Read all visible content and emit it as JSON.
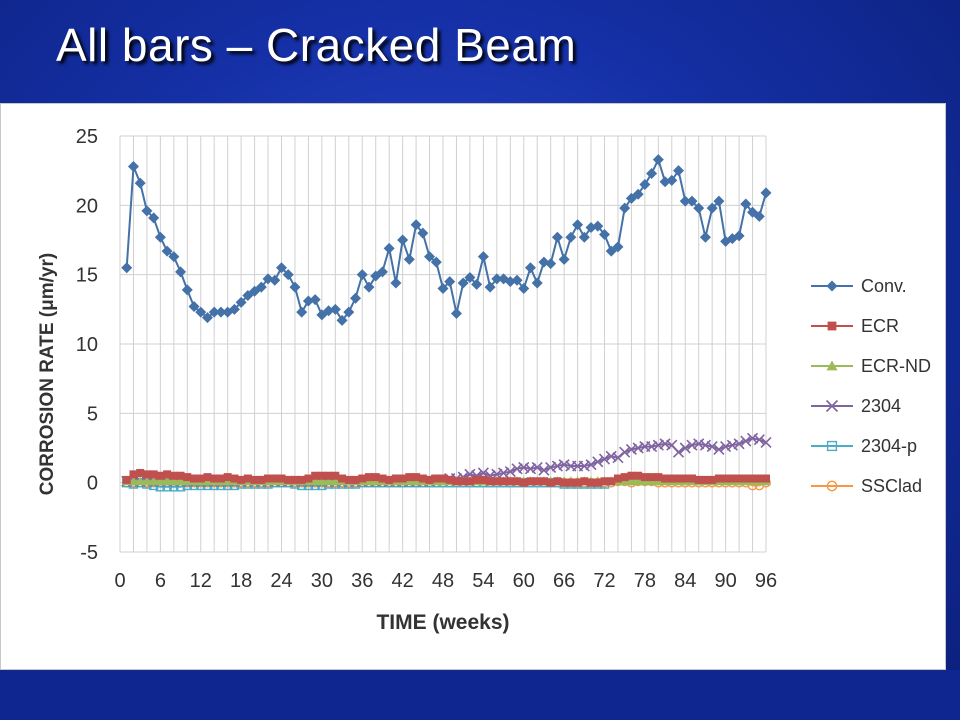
{
  "slide": {
    "title": "All bars – Cracked Beam"
  },
  "colors": {
    "background": "#1530a6",
    "title_text": "#ffffff",
    "grid": "#d0d0d0",
    "axis_text": "#333333"
  },
  "chart_data": {
    "type": "line",
    "title": "",
    "xlabel": "TIME (weeks)",
    "ylabel": "CORROSION RATE (μm/yr)",
    "xlim": [
      0,
      96
    ],
    "ylim": [
      -5,
      25
    ],
    "xticks": [
      0,
      6,
      12,
      18,
      24,
      30,
      36,
      42,
      48,
      54,
      60,
      66,
      72,
      78,
      84,
      90,
      96
    ],
    "yticks": [
      -5,
      0,
      5,
      10,
      15,
      20,
      25
    ],
    "grid": true,
    "legend_position": "right",
    "series": [
      {
        "name": "Conv.",
        "color": "#4472a8",
        "marker": "diamond",
        "x": [
          1,
          2,
          3,
          4,
          5,
          6,
          7,
          8,
          9,
          10,
          11,
          12,
          13,
          14,
          15,
          16,
          17,
          18,
          19,
          20,
          21,
          22,
          23,
          24,
          25,
          26,
          27,
          28,
          29,
          30,
          31,
          32,
          33,
          34,
          35,
          36,
          37,
          38,
          39,
          40,
          41,
          42,
          43,
          44,
          45,
          46,
          47,
          48,
          49,
          50,
          51,
          52,
          53,
          54,
          55,
          56,
          57,
          58,
          59,
          60,
          61,
          62,
          63,
          64,
          65,
          66,
          67,
          68,
          69,
          70,
          71,
          72,
          73,
          74,
          75,
          76,
          77,
          78,
          79,
          80,
          81,
          82,
          83,
          84,
          85,
          86,
          87,
          88,
          89,
          90,
          91,
          92,
          93,
          94,
          95,
          96
        ],
        "y": [
          15.5,
          22.8,
          21.6,
          19.6,
          19.1,
          17.7,
          16.7,
          16.3,
          15.2,
          13.9,
          12.7,
          12.3,
          11.9,
          12.3,
          12.3,
          12.3,
          12.5,
          13.0,
          13.5,
          13.8,
          14.1,
          14.7,
          14.6,
          15.5,
          15.0,
          14.1,
          12.3,
          13.1,
          13.2,
          12.1,
          12.4,
          12.5,
          11.7,
          12.3,
          13.3,
          15.0,
          14.1,
          14.9,
          15.2,
          16.9,
          14.4,
          17.5,
          16.1,
          18.6,
          18.0,
          16.3,
          15.9,
          14.0,
          14.5,
          12.2,
          14.4,
          14.8,
          14.3,
          16.3,
          14.1,
          14.7,
          14.7,
          14.5,
          14.6,
          14.0,
          15.5,
          14.4,
          15.9,
          15.8,
          17.7,
          16.1,
          17.7,
          18.6,
          17.7,
          18.4,
          18.5,
          17.9,
          16.7,
          17.0,
          19.8,
          20.5,
          20.8,
          21.5,
          22.3,
          23.3,
          21.7,
          21.8,
          22.5,
          20.3,
          20.3,
          19.8,
          17.7,
          19.8,
          20.3,
          17.4,
          17.6,
          17.8,
          20.1,
          19.5,
          19.2,
          20.9
        ]
      },
      {
        "name": "ECR",
        "color": "#c0504d",
        "marker": "square",
        "x": [
          1,
          2,
          3,
          4,
          5,
          6,
          7,
          8,
          9,
          10,
          11,
          12,
          13,
          14,
          15,
          16,
          17,
          18,
          19,
          20,
          21,
          22,
          23,
          24,
          25,
          26,
          27,
          28,
          29,
          30,
          31,
          32,
          33,
          34,
          35,
          36,
          37,
          38,
          39,
          40,
          41,
          42,
          43,
          44,
          45,
          46,
          47,
          48,
          49,
          50,
          51,
          52,
          53,
          54,
          55,
          56,
          57,
          58,
          59,
          60,
          61,
          62,
          63,
          64,
          65,
          66,
          67,
          68,
          69,
          70,
          71,
          72,
          73,
          74,
          75,
          76,
          77,
          78,
          79,
          80,
          81,
          82,
          83,
          84,
          85,
          86,
          87,
          88,
          89,
          90,
          91,
          92,
          93,
          94,
          95,
          96
        ],
        "y": [
          0.2,
          0.6,
          0.7,
          0.6,
          0.6,
          0.5,
          0.6,
          0.5,
          0.5,
          0.4,
          0.3,
          0.3,
          0.4,
          0.3,
          0.3,
          0.4,
          0.3,
          0.2,
          0.3,
          0.2,
          0.2,
          0.3,
          0.3,
          0.3,
          0.2,
          0.2,
          0.2,
          0.3,
          0.5,
          0.5,
          0.5,
          0.5,
          0.3,
          0.2,
          0.2,
          0.3,
          0.4,
          0.4,
          0.3,
          0.2,
          0.3,
          0.3,
          0.4,
          0.4,
          0.3,
          0.2,
          0.3,
          0.3,
          0.2,
          0.1,
          0.1,
          0.1,
          0.2,
          0.2,
          0.1,
          0.1,
          0.1,
          0.1,
          0.1,
          0.0,
          0.1,
          0.1,
          0.1,
          0.0,
          0.1,
          0.0,
          0.0,
          0.0,
          0.1,
          0.0,
          0.0,
          0.1,
          0.1,
          0.3,
          0.4,
          0.5,
          0.5,
          0.4,
          0.4,
          0.4,
          0.3,
          0.3,
          0.3,
          0.3,
          0.3,
          0.2,
          0.2,
          0.2,
          0.3,
          0.3,
          0.3,
          0.3,
          0.3,
          0.3,
          0.3,
          0.3
        ]
      },
      {
        "name": "ECR-ND",
        "color": "#9bbb59",
        "marker": "triangle",
        "x": [
          1,
          2,
          3,
          4,
          5,
          6,
          7,
          8,
          9,
          10,
          11,
          12,
          13,
          14,
          15,
          16,
          17,
          18,
          19,
          20,
          21,
          22,
          23,
          24,
          25,
          26,
          27,
          28,
          29,
          30,
          31,
          32,
          33,
          34,
          35,
          36,
          37,
          38,
          39,
          40,
          41,
          42,
          43,
          44,
          45,
          46,
          47,
          48,
          49,
          50,
          51,
          52,
          53,
          54,
          55,
          56,
          57,
          58,
          59,
          60,
          61,
          62,
          63,
          64,
          65,
          66,
          67,
          68,
          69,
          70,
          71,
          72,
          73,
          74,
          75,
          76,
          77,
          78,
          79,
          80,
          81,
          82,
          83,
          84,
          85,
          86,
          87,
          88,
          89,
          90,
          91,
          92,
          93,
          94,
          95,
          96
        ],
        "y": [
          0.1,
          0.1,
          0.1,
          0.1,
          0.1,
          0.1,
          0.1,
          0.1,
          0.1,
          0.1,
          0.1,
          0.1,
          0.1,
          0.1,
          0.1,
          0.1,
          0.1,
          0.1,
          0.1,
          0.1,
          0.1,
          0.1,
          0.1,
          0.1,
          0.1,
          0.1,
          0.1,
          0.1,
          0.1,
          0.1,
          0.1,
          0.1,
          0.1,
          0.1,
          0.1,
          0.1,
          0.1,
          0.1,
          0.1,
          0.1,
          0.1,
          0.1,
          0.1,
          0.1,
          0.1,
          0.1,
          0.1,
          0.1,
          0.1,
          0.1,
          0.1,
          0.1,
          0.1,
          0.1,
          0.1,
          0.1,
          0.1,
          0.1,
          0.1,
          0.1,
          0.1,
          0.1,
          0.1,
          0.1,
          0.1,
          0.1,
          0.1,
          0.1,
          0.1,
          0.1,
          0.1,
          0.1,
          0.1,
          0.1,
          0.1,
          0.1,
          0.1,
          0.1,
          0.1,
          0.1,
          0.1,
          0.1,
          0.1,
          0.1,
          0.1,
          0.1,
          0.1,
          0.1,
          0.1,
          0.1,
          0.1,
          0.1,
          0.1,
          0.1,
          0.1,
          0.1
        ]
      },
      {
        "name": "2304",
        "color": "#8064a2",
        "marker": "x",
        "x": [
          1,
          2,
          3,
          4,
          5,
          6,
          7,
          8,
          9,
          10,
          11,
          12,
          13,
          14,
          15,
          16,
          17,
          18,
          19,
          20,
          21,
          22,
          23,
          24,
          25,
          26,
          27,
          28,
          29,
          30,
          31,
          32,
          33,
          34,
          35,
          36,
          37,
          38,
          39,
          40,
          41,
          42,
          43,
          44,
          45,
          46,
          47,
          48,
          49,
          50,
          51,
          52,
          53,
          54,
          55,
          56,
          57,
          58,
          59,
          60,
          61,
          62,
          63,
          64,
          65,
          66,
          67,
          68,
          69,
          70,
          71,
          72,
          73,
          74,
          75,
          76,
          77,
          78,
          79,
          80,
          81,
          82,
          83,
          84,
          85,
          86,
          87,
          88,
          89,
          90,
          91,
          92,
          93,
          94,
          95,
          96
        ],
        "y": [
          0.1,
          0.1,
          0.1,
          0.1,
          0.1,
          0.1,
          0.1,
          0.1,
          0.1,
          0.1,
          0.1,
          0.1,
          0.1,
          0.1,
          0.1,
          0.1,
          0.1,
          0.1,
          0.1,
          0.1,
          0.1,
          0.1,
          0.1,
          0.1,
          0.1,
          0.1,
          0.1,
          0.1,
          0.1,
          0.1,
          0.1,
          0.1,
          0.1,
          0.1,
          0.1,
          0.1,
          0.1,
          0.1,
          0.1,
          0.1,
          0.1,
          0.1,
          0.1,
          0.1,
          0.1,
          0.1,
          0.2,
          0.2,
          0.3,
          0.3,
          0.4,
          0.6,
          0.5,
          0.7,
          0.5,
          0.6,
          0.7,
          0.8,
          1.0,
          1.1,
          1.0,
          1.1,
          0.9,
          1.1,
          1.2,
          1.3,
          1.2,
          1.2,
          1.2,
          1.3,
          1.5,
          1.7,
          1.9,
          1.8,
          2.2,
          2.4,
          2.5,
          2.6,
          2.6,
          2.7,
          2.8,
          2.7,
          2.2,
          2.5,
          2.7,
          2.8,
          2.7,
          2.6,
          2.4,
          2.6,
          2.7,
          2.8,
          3.0,
          3.2,
          3.1,
          2.9
        ]
      },
      {
        "name": "2304-p",
        "color": "#4bacc6",
        "marker": "open-square",
        "x": [
          1,
          2,
          3,
          4,
          5,
          6,
          7,
          8,
          9,
          10,
          11,
          12,
          13,
          14,
          15,
          16,
          17,
          18,
          19,
          20,
          21,
          22,
          23,
          24,
          25,
          26,
          27,
          28,
          29,
          30,
          31,
          32,
          33,
          34,
          35,
          36,
          37,
          38,
          39,
          40,
          41,
          42,
          43,
          44,
          45,
          46,
          47,
          48,
          49,
          50,
          51,
          52,
          53,
          54,
          55,
          56,
          57,
          58,
          59,
          60,
          61,
          62,
          63,
          64,
          65,
          66,
          67,
          68,
          69,
          70,
          71,
          72
        ],
        "y": [
          0.0,
          -0.1,
          0.0,
          -0.1,
          -0.2,
          -0.3,
          -0.3,
          -0.3,
          -0.3,
          -0.2,
          -0.2,
          -0.2,
          -0.2,
          -0.2,
          -0.2,
          -0.2,
          -0.2,
          -0.1,
          -0.1,
          -0.1,
          -0.1,
          -0.1,
          0.0,
          0.0,
          0.0,
          -0.1,
          -0.2,
          -0.2,
          -0.2,
          -0.2,
          -0.1,
          -0.1,
          -0.1,
          -0.1,
          -0.1,
          0.0,
          0.0,
          0.0,
          0.0,
          0.0,
          0.0,
          0.0,
          0.0,
          0.0,
          0.0,
          0.0,
          0.0,
          0.0,
          0.0,
          0.0,
          0.0,
          0.0,
          0.0,
          0.0,
          0.0,
          0.0,
          0.0,
          0.0,
          0.0,
          0.0,
          0.0,
          0.0,
          0.0,
          0.0,
          0.0,
          -0.1,
          -0.1,
          -0.1,
          -0.1,
          -0.1,
          -0.1,
          -0.1
        ]
      },
      {
        "name": "SSClad",
        "color": "#f79646",
        "marker": "open-circle",
        "x": [
          1,
          2,
          3,
          4,
          5,
          6,
          7,
          8,
          9,
          10,
          11,
          12,
          13,
          14,
          15,
          16,
          17,
          18,
          19,
          20,
          21,
          22,
          23,
          24,
          25,
          26,
          27,
          28,
          29,
          30,
          31,
          32,
          33,
          34,
          35,
          36,
          37,
          38,
          39,
          40,
          41,
          42,
          43,
          44,
          45,
          46,
          47,
          48,
          49,
          50,
          51,
          52,
          53,
          54,
          55,
          56,
          57,
          58,
          59,
          60,
          61,
          62,
          63,
          64,
          65,
          66,
          67,
          68,
          69,
          70,
          71,
          72,
          73,
          74,
          75,
          76,
          77,
          78,
          79,
          80,
          81,
          82,
          83,
          84,
          85,
          86,
          87,
          88,
          89,
          90,
          91,
          92,
          93,
          94,
          95,
          96
        ],
        "y": [
          0.0,
          0.0,
          0.0,
          0.0,
          0.0,
          0.0,
          0.0,
          0.0,
          0.0,
          0.0,
          0.0,
          0.0,
          0.0,
          0.0,
          0.0,
          0.0,
          0.0,
          0.0,
          0.0,
          0.0,
          0.0,
          0.0,
          0.0,
          0.0,
          0.0,
          0.0,
          0.0,
          0.0,
          0.0,
          0.0,
          0.0,
          0.0,
          0.0,
          0.0,
          0.0,
          0.0,
          0.0,
          0.0,
          0.0,
          0.0,
          0.0,
          0.0,
          0.0,
          0.0,
          0.0,
          0.0,
          0.0,
          0.0,
          0.0,
          0.0,
          0.0,
          0.0,
          0.0,
          0.0,
          0.0,
          0.0,
          0.0,
          0.0,
          0.0,
          0.0,
          0.0,
          0.0,
          0.0,
          0.0,
          0.0,
          0.0,
          0.0,
          0.0,
          0.0,
          0.0,
          0.0,
          0.0,
          0.0,
          0.1,
          0.1,
          0.0,
          0.1,
          0.1,
          0.1,
          0.0,
          0.0,
          0.0,
          0.0,
          0.0,
          0.0,
          0.0,
          0.0,
          0.0,
          0.0,
          0.0,
          0.0,
          0.0,
          0.0,
          -0.2,
          -0.2,
          0.0
        ]
      }
    ]
  }
}
